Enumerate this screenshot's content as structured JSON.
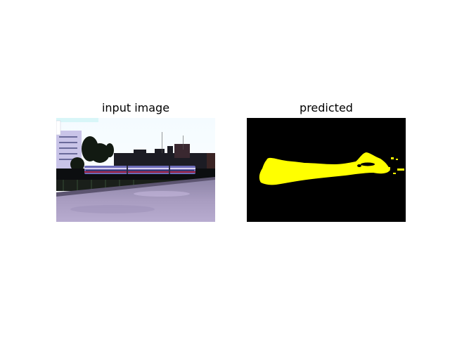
{
  "panels": {
    "input": {
      "title": "input image"
    },
    "prediction": {
      "title": "predicted",
      "mask_color": "#ffff00",
      "background_color": "#000000"
    }
  }
}
